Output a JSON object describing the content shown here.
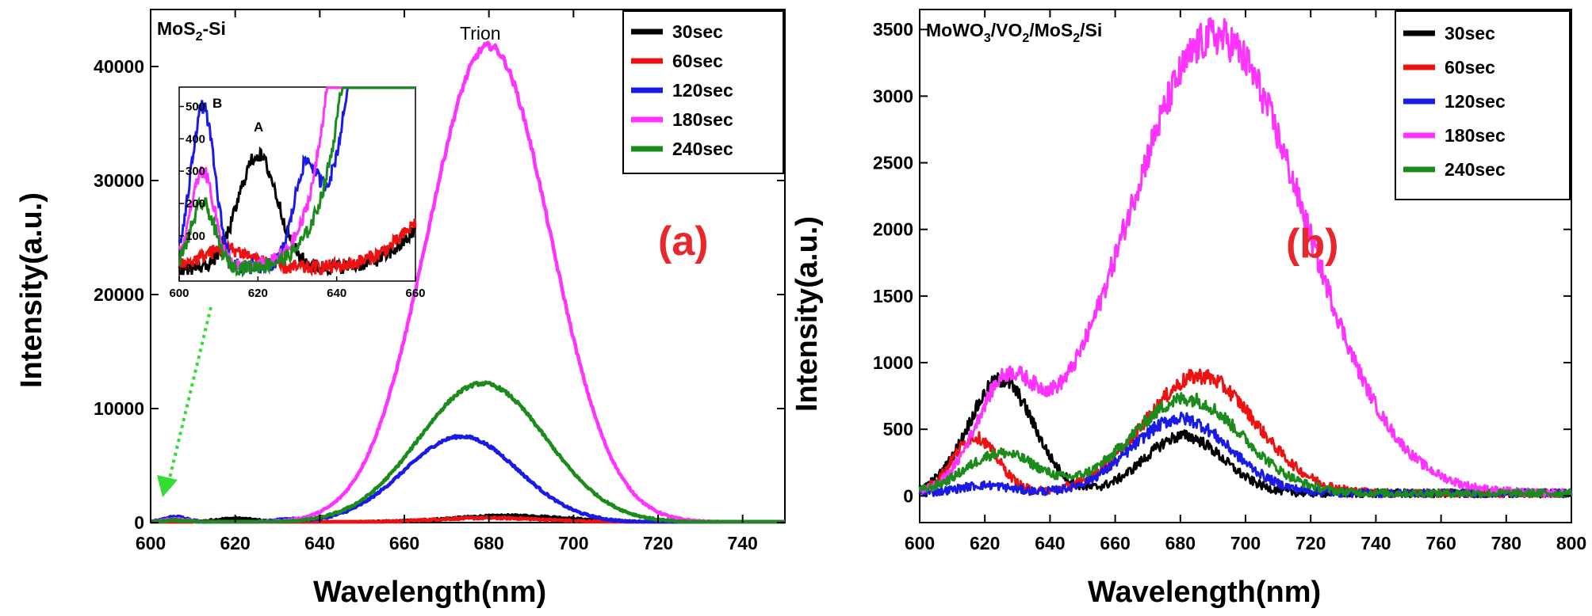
{
  "colors": {
    "30sec": "#000000",
    "60sec": "#ee1111",
    "120sec": "#1a1ae6",
    "180sec": "#ff33ff",
    "240sec": "#1b8c1b",
    "panel_label": "#e8262b",
    "arrow": "#33dd33"
  },
  "chart_data": [
    {
      "type": "line",
      "panel_label": "(a)",
      "title_main": "MoS",
      "title_sub": "2",
      "title_tail": "-Si",
      "annotation": "Trion",
      "xlabel": "Wavelength(nm)",
      "ylabel": "Intensity(a.u.)",
      "xlim": [
        600,
        750
      ],
      "ylim": [
        0,
        45000
      ],
      "xticks": [
        "600",
        "620",
        "640",
        "660",
        "680",
        "700",
        "720",
        "740"
      ],
      "yticks": [
        "0",
        "10000",
        "20000",
        "30000",
        "40000"
      ],
      "legend_position": "top-right",
      "series": [
        {
          "name": "30sec",
          "peaks": [
            [
              620,
              350,
              5
            ],
            [
              685,
              600,
              14
            ]
          ]
        },
        {
          "name": "60sec",
          "peaks": [
            [
              612,
              60,
              6
            ],
            [
              680,
              400,
              14
            ]
          ]
        },
        {
          "name": "120sec",
          "peaks": [
            [
              606,
              500,
              3
            ],
            [
              632,
              260,
              3
            ],
            [
              673.5,
              7550,
              13.5
            ]
          ]
        },
        {
          "name": "180sec",
          "peaks": [
            [
              606,
              300,
              3
            ],
            [
              680,
              41800,
              14.5
            ]
          ]
        },
        {
          "name": "240sec",
          "peaks": [
            [
              606,
              200,
              3
            ],
            [
              678.5,
              12200,
              15
            ]
          ]
        }
      ],
      "inset": {
        "labels": [
          "B",
          "A"
        ],
        "xlim": [
          600,
          660
        ],
        "ylim": [
          -40,
          560
        ],
        "xticks": [
          "600",
          "620",
          "640",
          "660"
        ],
        "yticks": [
          "0",
          "100",
          "200",
          "300",
          "400",
          "500"
        ]
      }
    },
    {
      "type": "line",
      "panel_label": "(b)",
      "title_parts": [
        "MoWO",
        "3",
        "/VO",
        "2",
        "/MoS",
        "2",
        "/Si"
      ],
      "xlabel": "Wavelength(nm)",
      "ylabel": "Intensity(a.u.)",
      "xlim": [
        600,
        800
      ],
      "ylim": [
        -200,
        3650
      ],
      "xticks": [
        "600",
        "620",
        "640",
        "660",
        "680",
        "700",
        "720",
        "740",
        "760",
        "780",
        "800"
      ],
      "yticks": [
        "0",
        "500",
        "1000",
        "1500",
        "2000",
        "2500",
        "3000",
        "3500"
      ],
      "legend_position": "top-right",
      "series": [
        {
          "name": "30sec",
          "peaks": [
            [
              625,
              850,
              10
            ],
            [
              681,
              430,
              12
            ]
          ]
        },
        {
          "name": "60sec",
          "peaks": [
            [
              617,
              420,
              7
            ],
            [
              686,
              880,
              17
            ]
          ]
        },
        {
          "name": "120sec",
          "peaks": [
            [
              620,
              60,
              8
            ],
            [
              680,
              560,
              15
            ]
          ]
        },
        {
          "name": "180sec",
          "peaks": [
            [
              626,
              700,
              9
            ],
            [
              691,
              3430,
              27
            ]
          ]
        },
        {
          "name": "240sec",
          "peaks": [
            [
              625,
              300,
              11
            ],
            [
              682,
              710,
              17
            ]
          ]
        }
      ]
    }
  ]
}
